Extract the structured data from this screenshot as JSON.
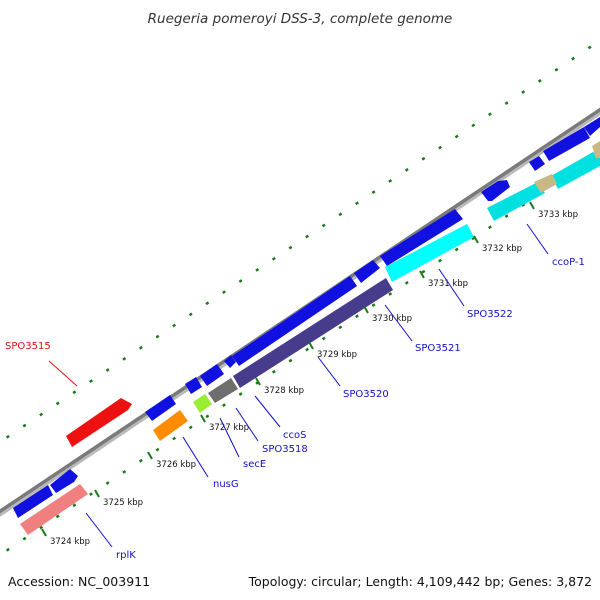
{
  "title": "Ruegeria pomeroyi DSS-3, complete genome",
  "footer": {
    "accession": "Accession: NC_003911",
    "summary": "Topology: circular; Length: 4,109,442 bp; Genes: 3,872"
  },
  "colors": {
    "forward_gene": "#1010e0",
    "tick": "#1a7a1a",
    "gene_label": "#1010cc",
    "highlight_label": "#dd1111",
    "backbone": "#7a7a7a"
  },
  "kbp_labels": [
    "3724 kbp",
    "3725 kbp",
    "3726 kbp",
    "3727 kbp",
    "3728 kbp",
    "3729 kbp",
    "3730 kbp",
    "3731 kbp",
    "3732 kbp",
    "3733 kbp"
  ],
  "gene_labels": [
    {
      "name": "rplK",
      "highlight": false
    },
    {
      "name": "nusG",
      "highlight": false
    },
    {
      "name": "secE",
      "highlight": false
    },
    {
      "name": "SPO3518",
      "highlight": false
    },
    {
      "name": "ccoS",
      "highlight": false
    },
    {
      "name": "SPO3520",
      "highlight": false
    },
    {
      "name": "SPO3521",
      "highlight": false
    },
    {
      "name": "SPO3522",
      "highlight": false
    },
    {
      "name": "ccoP-1",
      "highlight": false
    },
    {
      "name": "SPO3515",
      "highlight": true
    }
  ]
}
